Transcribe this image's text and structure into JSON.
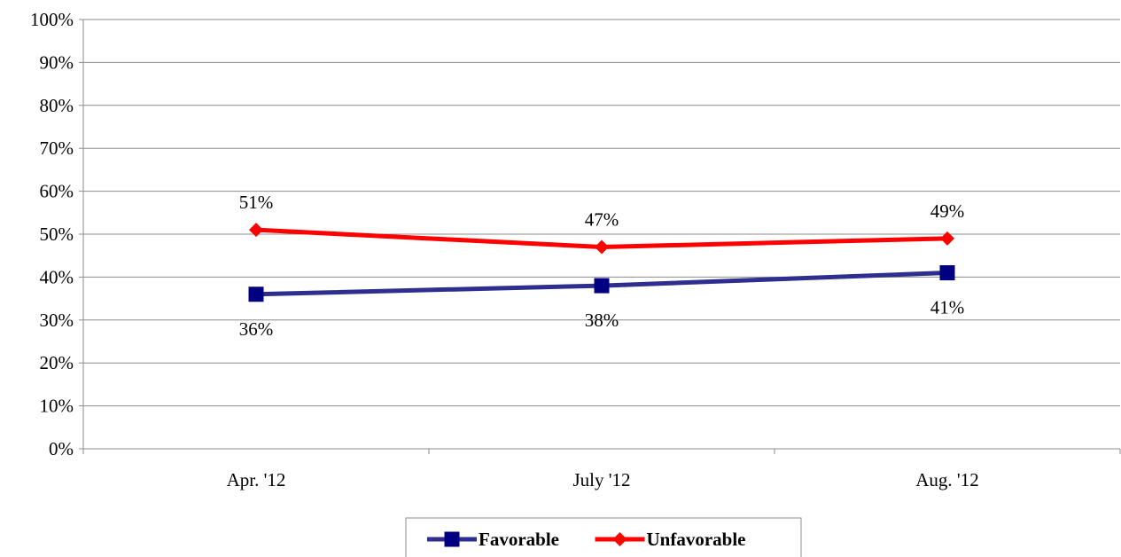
{
  "chart_data": {
    "type": "line",
    "title": "",
    "categories": [
      "Apr. '12",
      "July '12",
      "Aug. '12"
    ],
    "series": [
      {
        "name": "Favorable",
        "values": [
          36,
          38,
          41
        ],
        "color": "#2e2e8f",
        "marker": "square"
      },
      {
        "name": "Unfavorable",
        "values": [
          51,
          47,
          49
        ],
        "color": "#ff0000",
        "marker": "diamond"
      }
    ],
    "data_labels": {
      "Favorable": [
        "36%",
        "38%",
        "41%"
      ],
      "Unfavorable": [
        "51%",
        "47%",
        "49%"
      ]
    },
    "ylim": [
      0,
      100
    ],
    "yticks": [
      0,
      10,
      20,
      30,
      40,
      50,
      60,
      70,
      80,
      90,
      100
    ],
    "ytick_labels": [
      "0%",
      "10%",
      "20%",
      "30%",
      "40%",
      "50%",
      "60%",
      "70%",
      "80%",
      "90%",
      "100%"
    ],
    "grid": true,
    "legend_position": "bottom",
    "marker_fill": "#000080"
  }
}
